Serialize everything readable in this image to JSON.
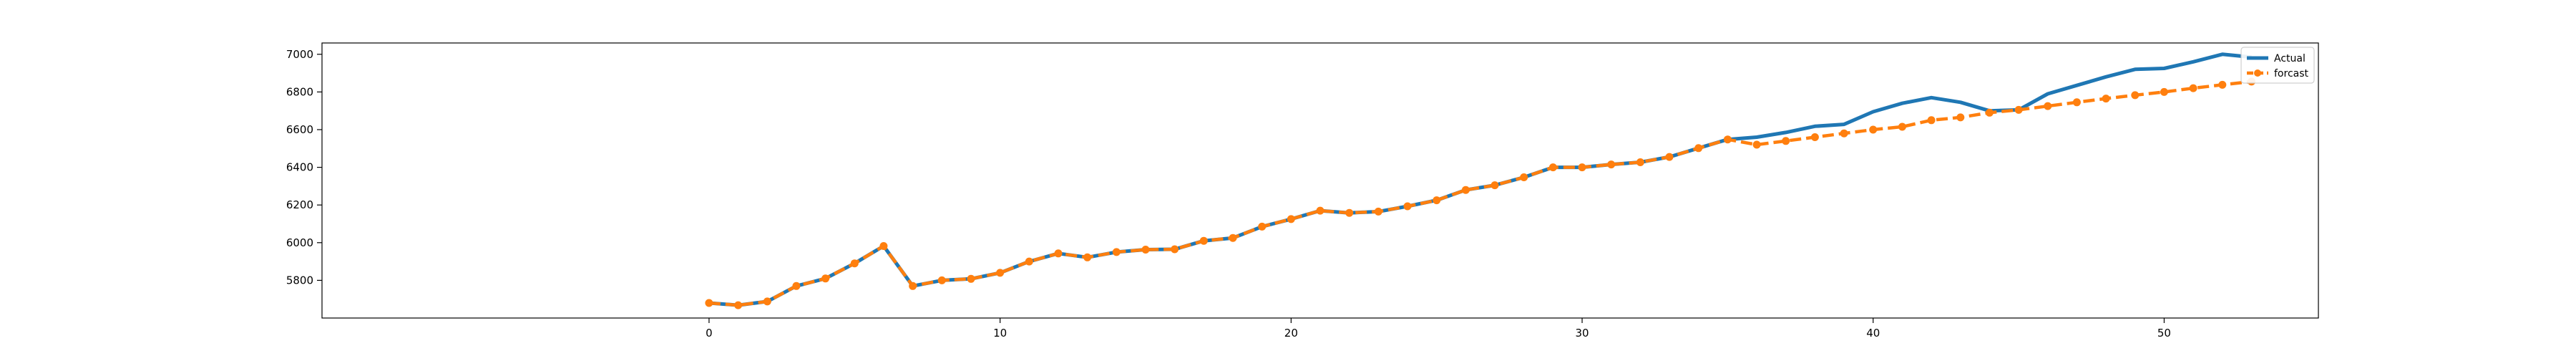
{
  "chart_data": {
    "type": "line",
    "title": "",
    "xlabel": "",
    "ylabel": "",
    "xlim": [
      -13.3,
      55.3
    ],
    "ylim": [
      5600,
      7060
    ],
    "xticks": [
      0,
      10,
      20,
      30,
      40,
      50
    ],
    "yticks": [
      5800,
      6000,
      6200,
      6400,
      6600,
      6800,
      7000
    ],
    "grid": false,
    "legend_position": "upper right",
    "series": [
      {
        "name": "Actual",
        "color": "#1f77b4",
        "style": "solid",
        "marker": "none",
        "x": [
          0,
          1,
          2,
          3,
          4,
          5,
          6,
          7,
          8,
          9,
          10,
          11,
          12,
          13,
          14,
          15,
          16,
          17,
          18,
          19,
          20,
          21,
          22,
          23,
          24,
          25,
          26,
          27,
          28,
          29,
          30,
          31,
          32,
          33,
          34,
          35,
          36,
          37,
          38,
          39,
          40,
          41,
          42,
          43,
          44,
          45,
          46,
          47,
          48,
          49,
          50,
          51,
          52,
          53
        ],
        "y": [
          5680,
          5668,
          5688,
          5770,
          5810,
          5890,
          5982,
          5770,
          5800,
          5808,
          5840,
          5900,
          5943,
          5922,
          5950,
          5963,
          5965,
          6010,
          6025,
          6085,
          6125,
          6170,
          6158,
          6165,
          6193,
          6225,
          6280,
          6305,
          6347,
          6400,
          6400,
          6415,
          6427,
          6455,
          6502,
          6548,
          6560,
          6585,
          6618,
          6628,
          6695,
          6740,
          6770,
          6745,
          6700,
          6705,
          6790,
          6835,
          6880,
          6920,
          6925,
          6960,
          7000,
          6985
        ]
      },
      {
        "name": "forcast",
        "color": "#ff7f0e",
        "style": "dashed",
        "marker": "circle",
        "x": [
          0,
          1,
          2,
          3,
          4,
          5,
          6,
          7,
          8,
          9,
          10,
          11,
          12,
          13,
          14,
          15,
          16,
          17,
          18,
          19,
          20,
          21,
          22,
          23,
          24,
          25,
          26,
          27,
          28,
          29,
          30,
          31,
          32,
          33,
          34,
          35,
          36,
          37,
          38,
          39,
          40,
          41,
          42,
          43,
          44,
          45,
          46,
          47,
          48,
          49,
          50,
          51,
          52,
          53
        ],
        "y": [
          5680,
          5668,
          5688,
          5770,
          5810,
          5890,
          5982,
          5770,
          5800,
          5808,
          5840,
          5900,
          5943,
          5922,
          5950,
          5963,
          5965,
          6010,
          6025,
          6085,
          6125,
          6170,
          6158,
          6165,
          6193,
          6225,
          6280,
          6305,
          6347,
          6400,
          6400,
          6415,
          6427,
          6455,
          6502,
          6548,
          6520,
          6540,
          6560,
          6580,
          6600,
          6615,
          6650,
          6665,
          6690,
          6705,
          6725,
          6745,
          6765,
          6783,
          6800,
          6820,
          6838,
          6855
        ]
      }
    ]
  }
}
